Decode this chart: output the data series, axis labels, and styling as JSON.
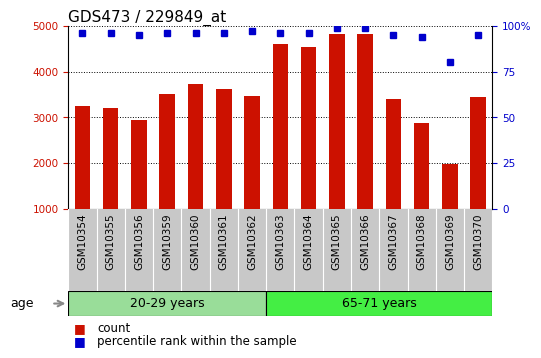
{
  "title": "GDS473 / 229849_at",
  "samples": [
    "GSM10354",
    "GSM10355",
    "GSM10356",
    "GSM10359",
    "GSM10360",
    "GSM10361",
    "GSM10362",
    "GSM10363",
    "GSM10364",
    "GSM10365",
    "GSM10366",
    "GSM10367",
    "GSM10368",
    "GSM10369",
    "GSM10370"
  ],
  "counts": [
    3250,
    3200,
    2950,
    3500,
    3720,
    3620,
    3470,
    4610,
    4540,
    4820,
    4830,
    3400,
    2870,
    1980,
    3440
  ],
  "percentile_ranks": [
    96,
    96,
    95,
    96,
    96,
    96,
    97,
    96,
    96,
    99,
    99,
    95,
    94,
    80,
    95
  ],
  "group1_label": "20-29 years",
  "group1_count": 7,
  "group2_label": "65-71 years",
  "group2_count": 8,
  "age_label": "age",
  "bar_color": "#cc1100",
  "dot_color": "#0000cc",
  "ylim_left": [
    1000,
    5000
  ],
  "ylim_right": [
    0,
    100
  ],
  "yticks_left": [
    1000,
    2000,
    3000,
    4000,
    5000
  ],
  "yticks_right": [
    0,
    25,
    50,
    75,
    100
  ],
  "grid_color": "#000000",
  "bg_color": "#ffffff",
  "tick_area_color": "#c8c8c8",
  "group1_bg": "#99dd99",
  "group2_bg": "#44ee44",
  "legend_count_label": "count",
  "legend_pct_label": "percentile rank within the sample",
  "title_fontsize": 11,
  "tick_fontsize": 7.5,
  "legend_fontsize": 8.5
}
